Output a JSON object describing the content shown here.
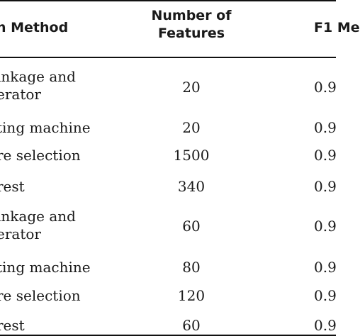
{
  "header": {
    "method": "n Method",
    "features_line1": "Number of",
    "features_line2": "Features",
    "f1": "F1 Me"
  },
  "rows": [
    {
      "method_line1": "inkage and",
      "method_line2": "erator",
      "features": "20",
      "f1": "0.9"
    },
    {
      "method_line1": "ting machine",
      "method_line2": "",
      "features": "20",
      "f1": "0.9"
    },
    {
      "method_line1": "re selection",
      "method_line2": "",
      "features": "1500",
      "f1": "0.9"
    },
    {
      "method_line1": "rest",
      "method_line2": "",
      "features": "340",
      "f1": "0.9"
    },
    {
      "method_line1": "inkage and",
      "method_line2": "erator",
      "features": "60",
      "f1": "0.9"
    },
    {
      "method_line1": "ting machine",
      "method_line2": "",
      "features": "80",
      "f1": "0.9"
    },
    {
      "method_line1": "re selection",
      "method_line2": "",
      "features": "120",
      "f1": "0.9"
    },
    {
      "method_line1": "rest",
      "method_line2": "",
      "features": "60",
      "f1": "0.9"
    }
  ]
}
